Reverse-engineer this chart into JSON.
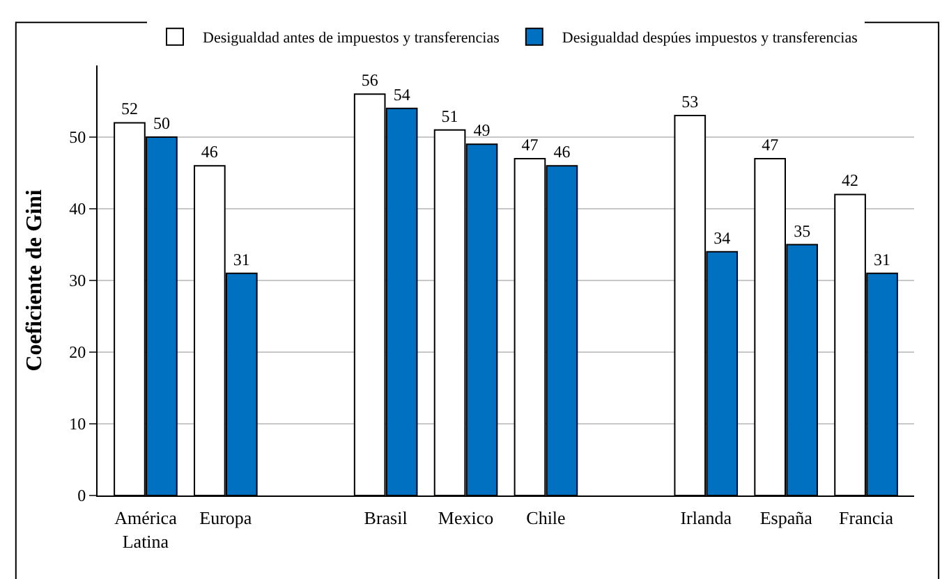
{
  "chart_data": {
    "type": "bar",
    "ylabel": "Coeficiente de Gini",
    "categories": [
      "América Latina",
      "Europa",
      null,
      "Brasil",
      "Mexico",
      "Chile",
      null,
      "Irlanda",
      "España",
      "Francia"
    ],
    "series": [
      {
        "name": "Desigualdad antes de impuestos y transferencias",
        "color": "#ffffff",
        "values": [
          52,
          46,
          null,
          56,
          51,
          47,
          null,
          53,
          47,
          42
        ]
      },
      {
        "name": "Desigualdad despúes impuestos y transferencias",
        "color": "#0070c0",
        "values": [
          50,
          31,
          null,
          54,
          49,
          46,
          null,
          34,
          35,
          31
        ]
      }
    ],
    "ylim": [
      0,
      60
    ],
    "yticks": [
      0,
      10,
      20,
      30,
      40,
      50
    ],
    "grid": "y",
    "legend": "top",
    "data_labels": true
  }
}
